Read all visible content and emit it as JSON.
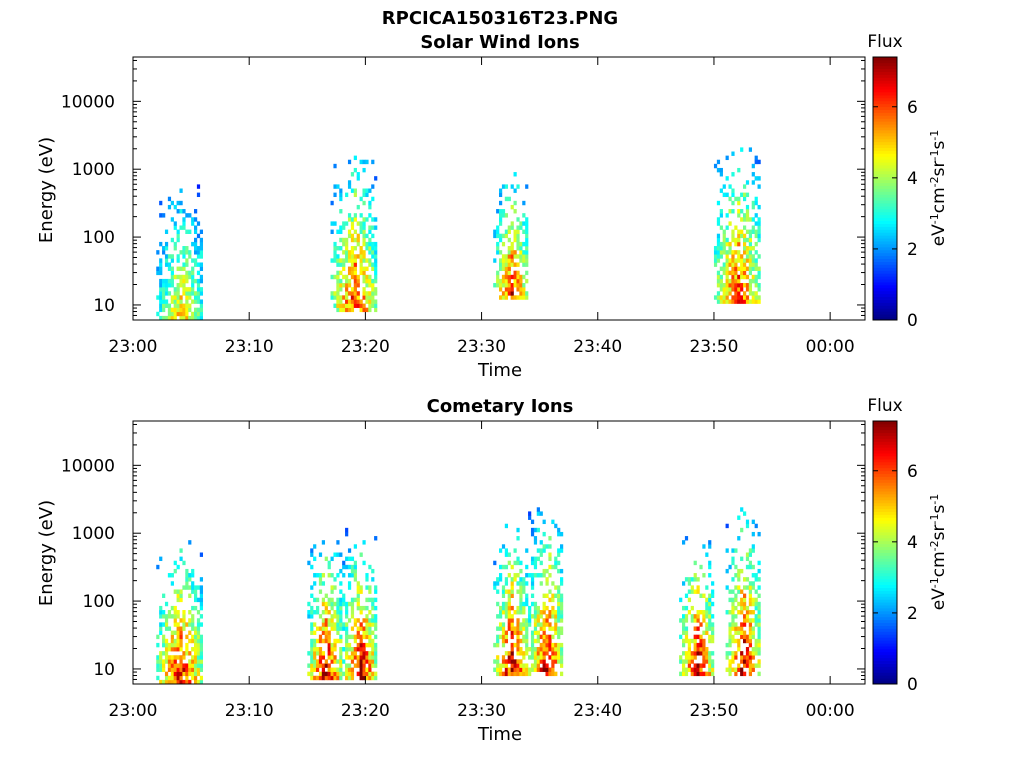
{
  "figure": {
    "title": "RPCICA150316T23.PNG"
  },
  "chart_data": [
    {
      "type": "heatmap",
      "title": "Solar Wind Ions",
      "xlabel": "Time",
      "ylabel": "Energy (eV)",
      "xticks": [
        "23:00",
        "23:10",
        "23:20",
        "23:30",
        "23:40",
        "23:50",
        "00:00"
      ],
      "xlim_minutes": [
        0,
        63
      ],
      "y_scale": "log",
      "ylim": [
        6,
        45000
      ],
      "yticks": [
        10,
        100,
        1000,
        10000
      ],
      "ytick_labels": [
        "10",
        "100",
        "1000",
        "10000"
      ],
      "colorbar": {
        "title": "Flux",
        "label": "eV-1cm-2sr-1s-1",
        "range": [
          0,
          7.4
        ],
        "ticks": [
          0,
          2,
          4,
          6
        ],
        "colormap": "jet"
      },
      "colorbar_title": "Flux",
      "colorbar_label_parts": [
        "eV",
        "-1",
        "cm",
        "-2",
        "sr",
        "-1",
        "s",
        "-1"
      ],
      "grid": false,
      "bursts": [
        {
          "start": "23:02",
          "end": "23:06",
          "flux_max": 5.2,
          "energy_range": [
            6,
            1200
          ]
        },
        {
          "start": "23:17",
          "end": "23:21",
          "flux_max": 6.5,
          "energy_range": [
            8,
            3500
          ]
        },
        {
          "start": "23:31",
          "end": "23:34",
          "flux_max": 6.5,
          "energy_range": [
            12,
            1900
          ]
        },
        {
          "start": "23:50",
          "end": "23:54",
          "flux_max": 6.5,
          "energy_range": [
            10,
            6000
          ]
        }
      ]
    },
    {
      "type": "heatmap",
      "title": "Cometary Ions",
      "xlabel": "Time",
      "ylabel": "Energy (eV)",
      "xticks": [
        "23:00",
        "23:10",
        "23:20",
        "23:30",
        "23:40",
        "23:50",
        "00:00"
      ],
      "xlim_minutes": [
        0,
        63
      ],
      "y_scale": "log",
      "ylim": [
        6,
        45000
      ],
      "yticks": [
        10,
        100,
        1000,
        10000
      ],
      "ytick_labels": [
        "10",
        "100",
        "1000",
        "10000"
      ],
      "colorbar": {
        "title": "Flux",
        "label": "eV-1cm-2sr-1s-1",
        "range": [
          0,
          7.4
        ],
        "ticks": [
          0,
          2,
          4,
          6
        ],
        "colormap": "jet"
      },
      "colorbar_title": "Flux",
      "colorbar_label_parts": [
        "eV",
        "-1",
        "cm",
        "-2",
        "sr",
        "-1",
        "s",
        "-1"
      ],
      "grid": false,
      "bursts": [
        {
          "start": "23:02",
          "end": "23:06",
          "flux_max": 6.8,
          "energy_range": [
            6,
            1600
          ]
        },
        {
          "start": "23:15",
          "end": "23:18",
          "flux_max": 7.0,
          "energy_range": [
            7,
            2200
          ]
        },
        {
          "start": "23:18",
          "end": "23:21",
          "flux_max": 7.0,
          "energy_range": [
            7,
            2500
          ]
        },
        {
          "start": "23:31",
          "end": "23:34",
          "flux_max": 7.0,
          "energy_range": [
            8,
            3000
          ]
        },
        {
          "start": "23:34",
          "end": "23:37",
          "flux_max": 7.0,
          "energy_range": [
            8,
            7000
          ]
        },
        {
          "start": "23:47",
          "end": "23:50",
          "flux_max": 7.0,
          "energy_range": [
            8,
            2000
          ]
        },
        {
          "start": "23:51",
          "end": "23:54",
          "flux_max": 7.0,
          "energy_range": [
            8,
            6000
          ]
        }
      ]
    }
  ]
}
